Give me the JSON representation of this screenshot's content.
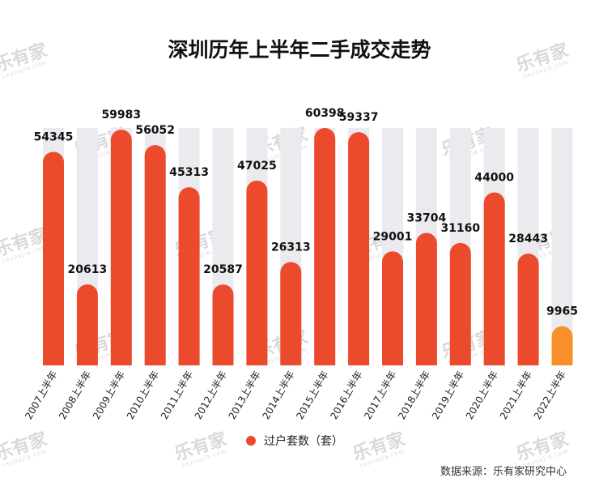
{
  "chart_data": {
    "type": "bar",
    "title": "深圳历年上半年二手成交走势",
    "categories": [
      "2007上半年",
      "2008上半年",
      "2009上半年",
      "2010上半年",
      "2011上半年",
      "2012上半年",
      "2013上半年",
      "2014上半年",
      "2015上半年",
      "2016上半年",
      "2017上半年",
      "2018上半年",
      "2019上半年",
      "2020上半年",
      "2021上半年",
      "2022上半年"
    ],
    "series": [
      {
        "name": "过户套数（套）",
        "values": [
          54345,
          20613,
          59983,
          56052,
          45313,
          20587,
          47025,
          26313,
          60398,
          59337,
          29001,
          33704,
          31160,
          44000,
          28443,
          9965
        ]
      }
    ],
    "ylim": [
      0,
      60398
    ],
    "grid": false,
    "legend": "bottom-center",
    "highlight_index": 15
  },
  "colors": {
    "bar": "#ec4a2c",
    "highlight": "#f7902b",
    "track": "#ebebef"
  },
  "source": "数据来源：乐有家研究中心",
  "watermark": {
    "brand": "乐有家",
    "sub": "Leyoujia.com"
  }
}
